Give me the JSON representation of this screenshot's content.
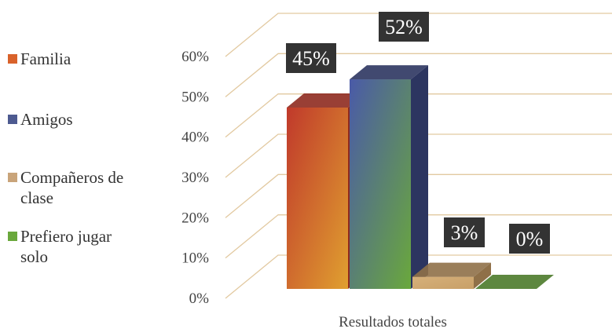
{
  "chart_data": {
    "type": "bar",
    "style": "3d-clustered-column",
    "category": "Resultados totales",
    "xlabel": "Resultados totales",
    "ylabel": "",
    "ylim": [
      0,
      60
    ],
    "yticks": [
      "0%",
      "10%",
      "20%",
      "30%",
      "40%",
      "50%",
      "60%"
    ],
    "grid": true,
    "legend_position": "left",
    "series": [
      {
        "name": "Familia",
        "value": 45,
        "label": "45%",
        "color_top": "#c0392b",
        "color_bottom": "#e0a030",
        "color_side": "#8e2a1f"
      },
      {
        "name": "Amigos",
        "value": 52,
        "label": "52%",
        "color_top": "#4a5aa8",
        "color_bottom": "#6aa83c",
        "color_side": "#2c3560"
      },
      {
        "name": "Compañeros de\nclase",
        "value": 3,
        "label": "3%",
        "color_top": "#d6b07a",
        "color_bottom": "#c8a068",
        "color_side": "#8f7048"
      },
      {
        "name": "Prefiero jugar\nsolo",
        "value": 0,
        "label": "0%",
        "color_top": "#6aa83c",
        "color_bottom": "#6aa83c",
        "color_side": "#4b7a2a"
      }
    ]
  },
  "colors": {
    "gridline": "#e2c9a0",
    "axis_text": "#444444",
    "data_label_bg": "#333333",
    "data_label_text": "#ffffff"
  },
  "legend": {
    "items": [
      {
        "label": "Familia",
        "swatch": "#d9622b"
      },
      {
        "label": "Amigos",
        "swatch": "#4d5a90"
      },
      {
        "label": "Compañeros de\nclase",
        "swatch": "#c9a47a"
      },
      {
        "label": "Prefiero jugar\nsolo",
        "swatch": "#6aa83c"
      }
    ]
  }
}
